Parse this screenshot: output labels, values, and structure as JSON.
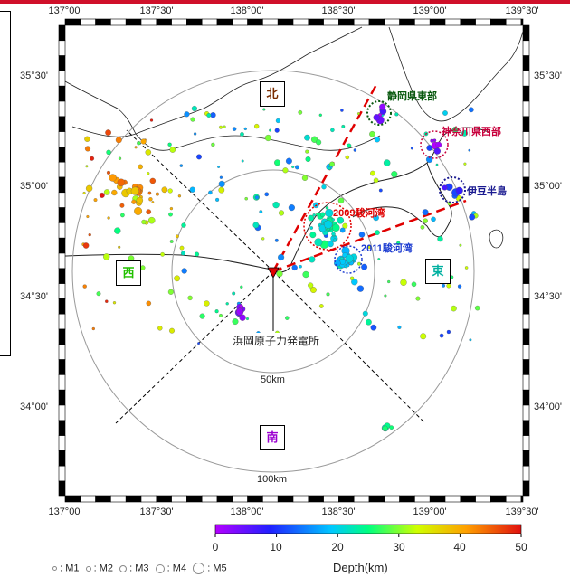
{
  "map": {
    "lon_labels_top": [
      "137°00'",
      "137°30'",
      "138°00'",
      "138°30'",
      "139°00'",
      "139°30'"
    ],
    "lon_labels_bottom": [
      "137°00'",
      "137°30'",
      "138°00'",
      "138°30'",
      "139°00'",
      "139°30'"
    ],
    "lat_labels_left": [
      "35°30'",
      "35°00'",
      "34°30'",
      "34°00'"
    ],
    "lat_labels_right": [
      "35°30'",
      "35°00'",
      "34°30'",
      "34°00'"
    ],
    "directions": {
      "north": "北",
      "south": "南",
      "east": "東",
      "west": "西"
    },
    "directions_colors": {
      "north": "#7a2d00",
      "south": "#9b00d0",
      "east": "#00b0a0",
      "west": "#22c000"
    },
    "ring_labels": {
      "inner": "50km",
      "outer": "100km"
    },
    "plant_label": "浜岡原子力発電所",
    "annotations": [
      {
        "text": "静岡県東部",
        "color": "#0a5a10"
      },
      {
        "text": "神奈川県西部",
        "color": "#c8003c"
      },
      {
        "text": "伊豆半島",
        "color": "#1a1a90"
      },
      {
        "text": "2009駿河湾",
        "color": "#e00000"
      },
      {
        "text": "2011駿河湾",
        "color": "#1a3ad0"
      }
    ]
  },
  "colorbar": {
    "ticks": [
      "0",
      "10",
      "20",
      "30",
      "40",
      "50"
    ],
    "label": "Depth(km)",
    "stops": [
      "#b400ff",
      "#2020ff",
      "#00c8ff",
      "#00ff80",
      "#d0ff00",
      "#ffa000",
      "#e01010"
    ]
  },
  "legend": {
    "items": [
      "M1",
      "M2",
      "M3",
      "M4",
      "M5"
    ]
  }
}
